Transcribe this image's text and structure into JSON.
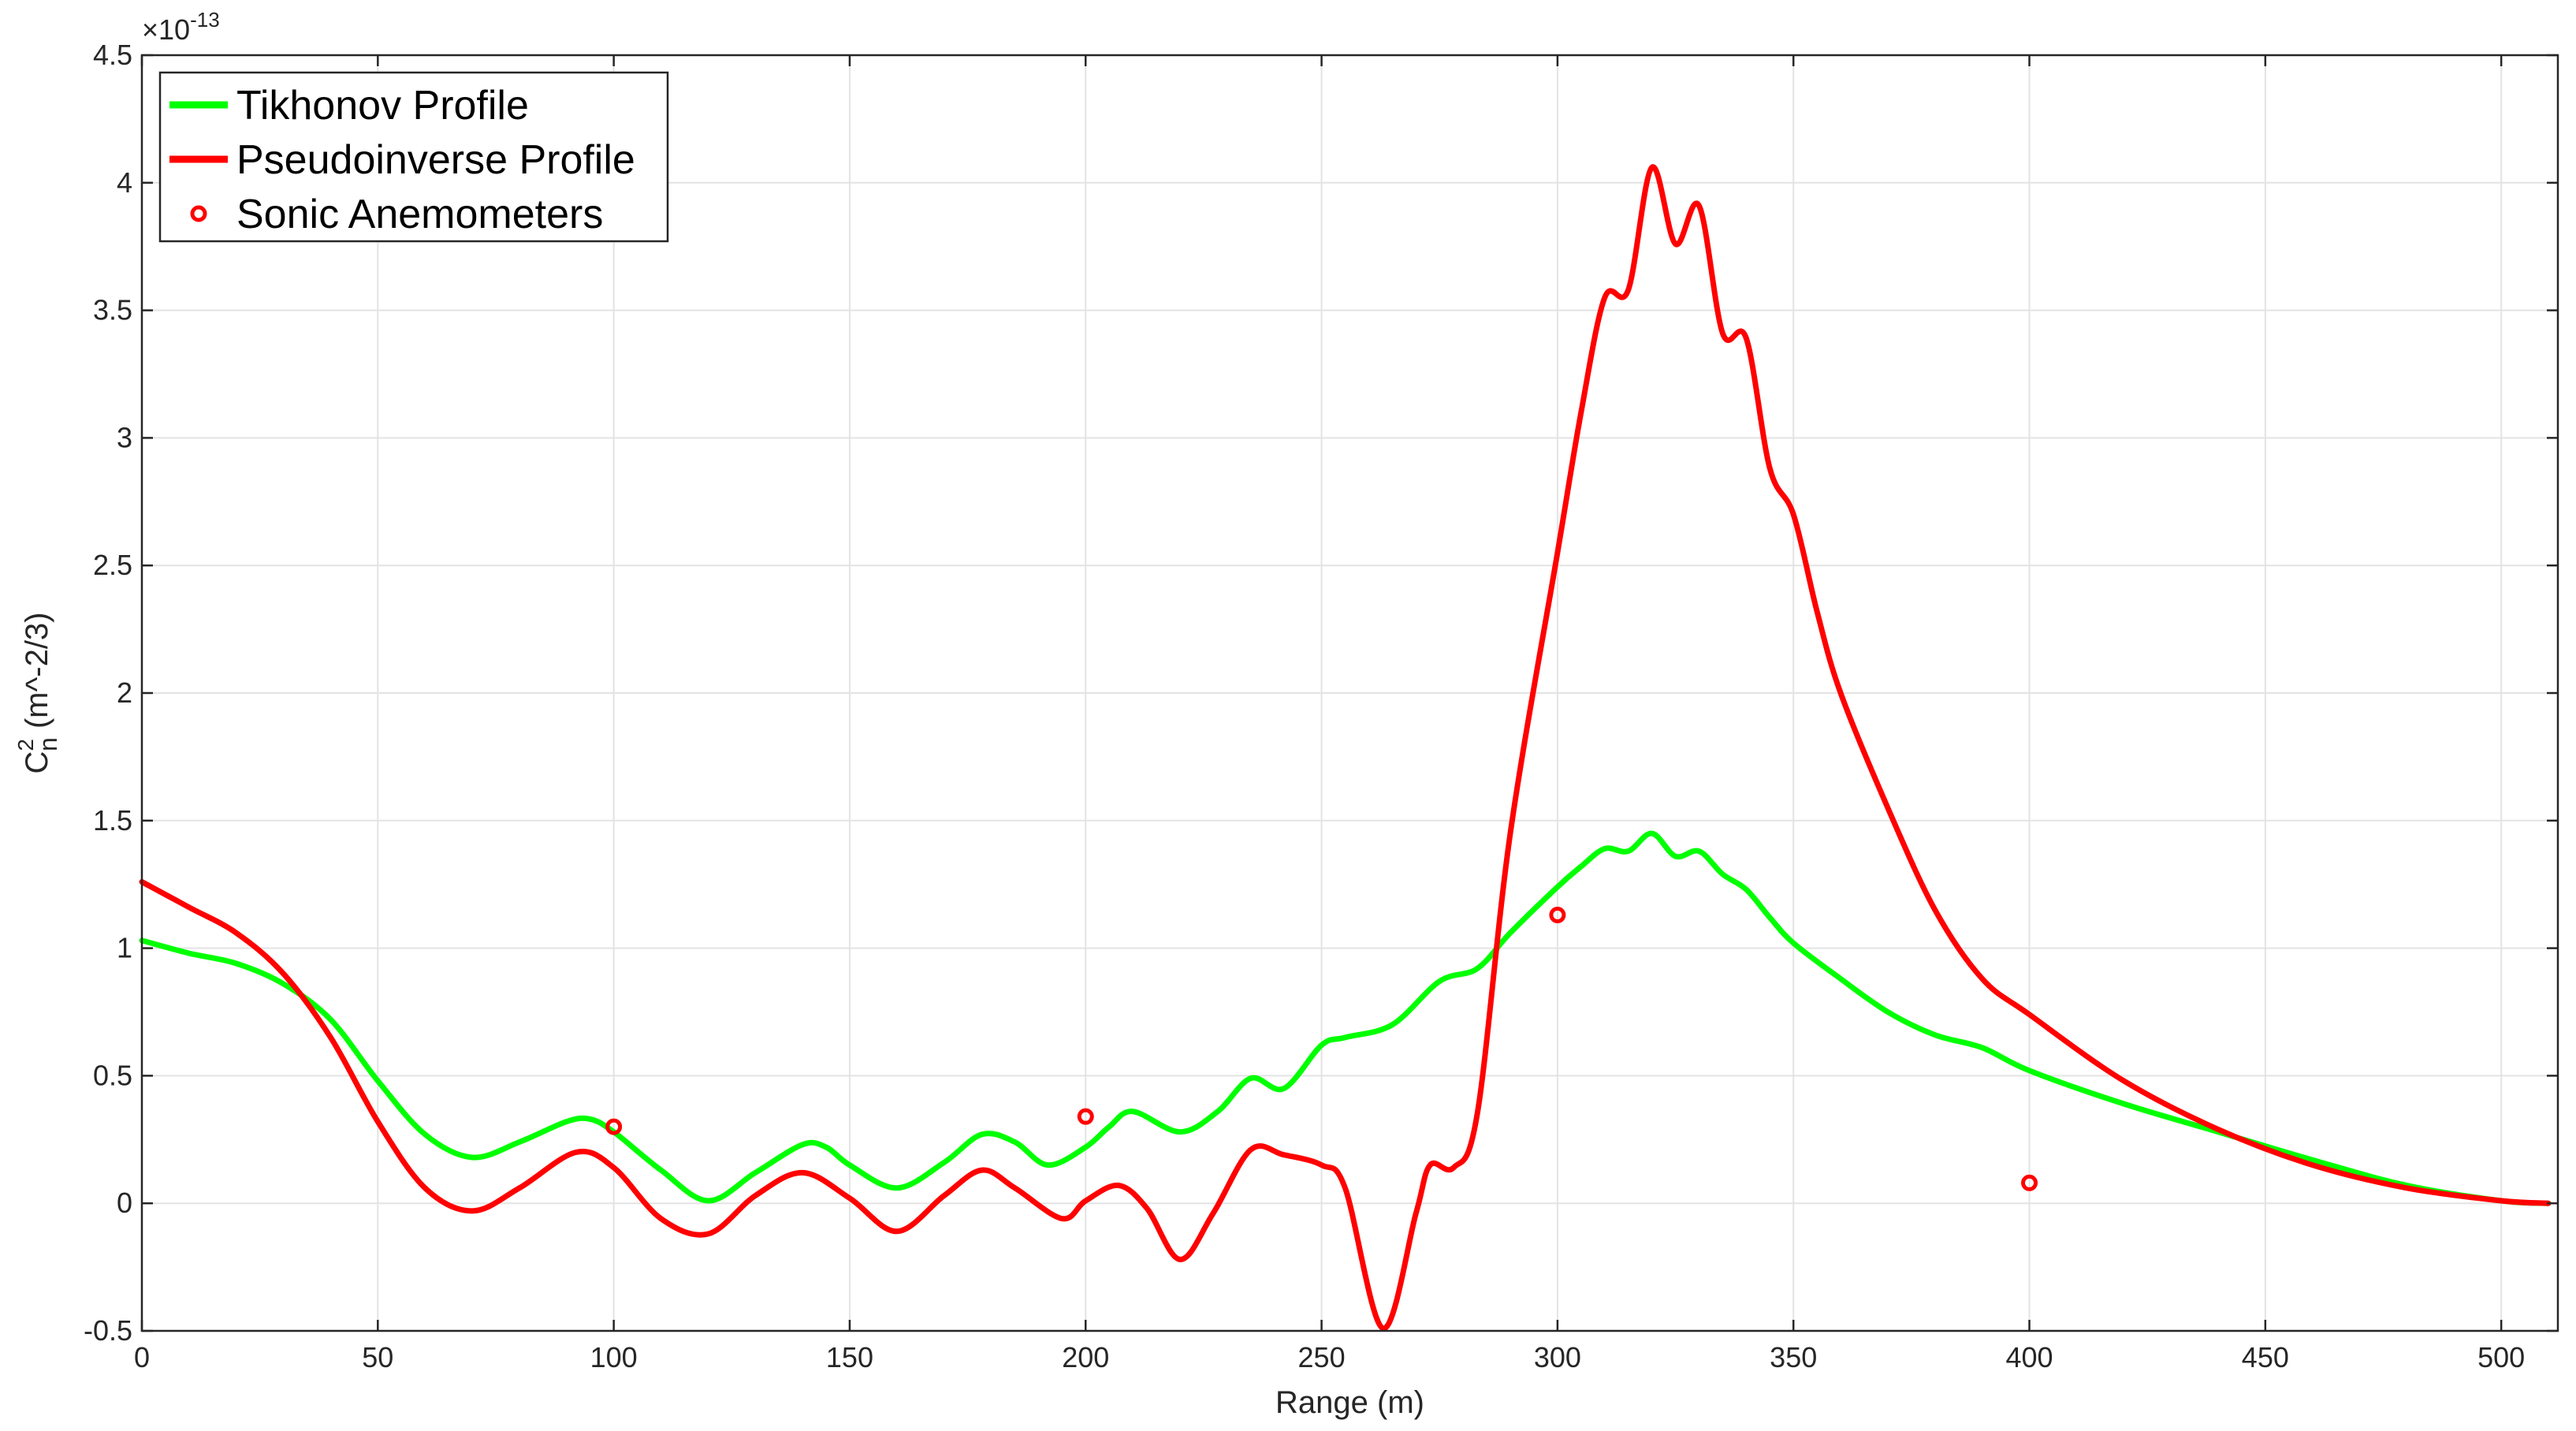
{
  "chart_data": {
    "type": "line",
    "xlabel": "Range (m)",
    "ylabel": {
      "base": "C",
      "sup": "2",
      "sub": "n",
      "rest": " (m^-2/3)"
    },
    "exponent": {
      "base": "×10",
      "power": "-13"
    },
    "xlim": [
      0,
      512
    ],
    "ylim": [
      -0.5,
      4.5
    ],
    "xticks": [
      0,
      50,
      100,
      150,
      200,
      250,
      300,
      350,
      400,
      450,
      500
    ],
    "yticks": [
      -0.5,
      0,
      0.5,
      1,
      1.5,
      2,
      2.5,
      3,
      3.5,
      4,
      4.5
    ],
    "ytick_labels": [
      "-0.5",
      "0",
      "0.5",
      "1",
      "1.5",
      "2",
      "2.5",
      "3",
      "3.5",
      "4",
      "4.5"
    ],
    "grid": true,
    "legend_position": "top-left",
    "series": [
      {
        "name": "Tikhonov Profile",
        "kind": "line",
        "color": "#00FF00",
        "x": [
          0,
          10,
          20,
          30,
          40,
          50,
          60,
          70,
          80,
          90,
          95,
          100,
          110,
          120,
          130,
          140,
          145,
          150,
          160,
          170,
          178,
          185,
          192,
          200,
          205,
          210,
          220,
          228,
          235,
          242,
          250,
          255,
          265,
          275,
          283,
          290,
          300,
          305,
          310,
          315,
          320,
          325,
          330,
          335,
          340,
          345,
          350,
          360,
          370,
          380,
          390,
          400,
          420,
          440,
          460,
          480,
          500,
          510
        ],
        "y": [
          1.03,
          0.98,
          0.94,
          0.86,
          0.72,
          0.48,
          0.27,
          0.18,
          0.24,
          0.32,
          0.33,
          0.28,
          0.13,
          0.01,
          0.12,
          0.23,
          0.22,
          0.15,
          0.06,
          0.16,
          0.27,
          0.24,
          0.15,
          0.22,
          0.3,
          0.36,
          0.28,
          0.36,
          0.49,
          0.45,
          0.62,
          0.65,
          0.7,
          0.87,
          0.92,
          1.06,
          1.24,
          1.32,
          1.39,
          1.38,
          1.45,
          1.36,
          1.38,
          1.29,
          1.23,
          1.12,
          1.02,
          0.88,
          0.75,
          0.66,
          0.61,
          0.52,
          0.39,
          0.28,
          0.17,
          0.07,
          0.01,
          0.0
        ]
      },
      {
        "name": "Pseudoinverse Profile",
        "kind": "line",
        "color": "#FF0000",
        "x": [
          0,
          10,
          20,
          30,
          40,
          50,
          60,
          70,
          80,
          92,
          100,
          110,
          120,
          130,
          140,
          150,
          160,
          170,
          178,
          185,
          195,
          200,
          207,
          213,
          220,
          227,
          235,
          242,
          250,
          255,
          263,
          270,
          273,
          278,
          283,
          290,
          300,
          305,
          310,
          315,
          320,
          325,
          330,
          335,
          340,
          345,
          350,
          355,
          360,
          370,
          380,
          390,
          400,
          420,
          440,
          460,
          480,
          500,
          510
        ],
        "y": [
          1.26,
          1.16,
          1.06,
          0.9,
          0.65,
          0.32,
          0.06,
          -0.03,
          0.06,
          0.2,
          0.14,
          -0.06,
          -0.12,
          0.03,
          0.12,
          0.02,
          -0.11,
          0.03,
          0.13,
          0.06,
          -0.06,
          0.01,
          0.07,
          -0.02,
          -0.22,
          -0.04,
          0.21,
          0.19,
          0.15,
          0.06,
          -0.49,
          -0.04,
          0.15,
          0.14,
          0.35,
          1.45,
          2.55,
          3.1,
          3.55,
          3.58,
          4.06,
          3.76,
          3.91,
          3.41,
          3.39,
          2.88,
          2.7,
          2.32,
          2.0,
          1.55,
          1.15,
          0.88,
          0.74,
          0.48,
          0.29,
          0.15,
          0.06,
          0.01,
          0.0
        ]
      },
      {
        "name": "Sonic Anemometers",
        "kind": "scatter",
        "color": "#FF0000",
        "x": [
          100,
          200,
          300,
          400
        ],
        "y": [
          0.3,
          0.34,
          1.13,
          0.08
        ]
      }
    ]
  }
}
